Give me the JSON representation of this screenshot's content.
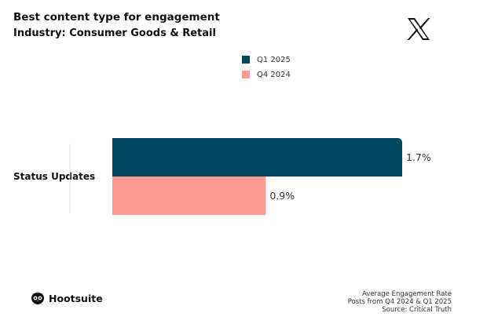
{
  "header": {
    "title": "Best content type for engagement",
    "subtitle": "Industry: Consumer Goods & Retail"
  },
  "icons": {
    "platform": "x-logo-icon",
    "brand": "hootsuite-owl-icon"
  },
  "colors": {
    "q1_2025": "#004963",
    "q4_2024": "#FF9A93",
    "text": "#111111"
  },
  "brand": {
    "name": "Hootsuite"
  },
  "footnote": {
    "line1": "Average Engagement Rate",
    "line2": "Posts from Q4 2024 & Q1 2025",
    "line3": "Source: Critical Truth"
  },
  "chart_data": {
    "type": "bar",
    "orientation": "horizontal",
    "title": "Best content type for engagement",
    "subtitle": "Industry: Consumer Goods & Retail",
    "categories": [
      "Status Updates"
    ],
    "series": [
      {
        "name": "Q1 2025",
        "values": [
          1.7
        ],
        "labels": [
          "1.7%"
        ],
        "color": "#004963"
      },
      {
        "name": "Q4 2024",
        "values": [
          0.9
        ],
        "labels": [
          "0.9%"
        ],
        "color": "#FF9A93"
      }
    ],
    "unit": "%",
    "xlim": [
      0,
      1.7
    ],
    "grid": false,
    "legend": "top-center",
    "xlabel": "",
    "ylabel": ""
  }
}
